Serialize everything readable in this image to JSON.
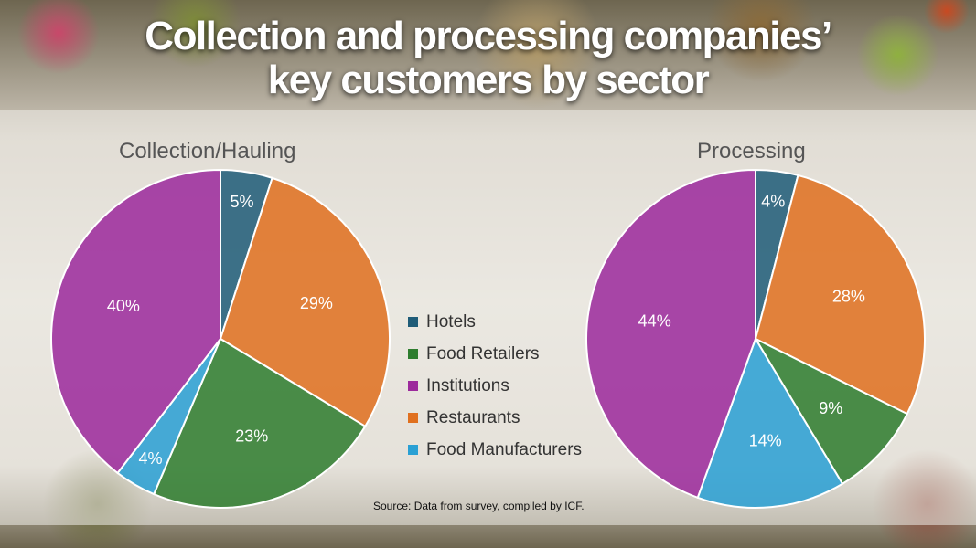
{
  "title_line1": "Collection and processing companies’",
  "title_line2": "key customers by sector",
  "source": "Source: Data from survey, compiled by ICF.",
  "colors": {
    "Hotels": "#1f5c78",
    "Food Retailers": "#2e7d2e",
    "Institutions": "#9c2a9c",
    "Restaurants": "#e0701f",
    "Food Manufacturers": "#2aa0d4"
  },
  "legend": [
    "Hotels",
    "Food Retailers",
    "Institutions",
    "Restaurants",
    "Food Manufacturers"
  ],
  "chart_data": [
    {
      "type": "pie",
      "title": "Collection/Hauling",
      "slices": [
        {
          "category": "Hotels",
          "value": 5,
          "label": "5%"
        },
        {
          "category": "Restaurants",
          "value": 29,
          "label": "29%"
        },
        {
          "category": "Food Retailers",
          "value": 23,
          "label": "23%"
        },
        {
          "category": "Food Manufacturers",
          "value": 4,
          "label": "4%"
        },
        {
          "category": "Institutions",
          "value": 40,
          "label": "40%"
        }
      ]
    },
    {
      "type": "pie",
      "title": "Processing",
      "slices": [
        {
          "category": "Hotels",
          "value": 4,
          "label": "4%"
        },
        {
          "category": "Restaurants",
          "value": 28,
          "label": "28%"
        },
        {
          "category": "Food Retailers",
          "value": 9,
          "label": "9%"
        },
        {
          "category": "Food Manufacturers",
          "value": 14,
          "label": "14%"
        },
        {
          "category": "Institutions",
          "value": 44,
          "label": "44%"
        }
      ]
    }
  ]
}
